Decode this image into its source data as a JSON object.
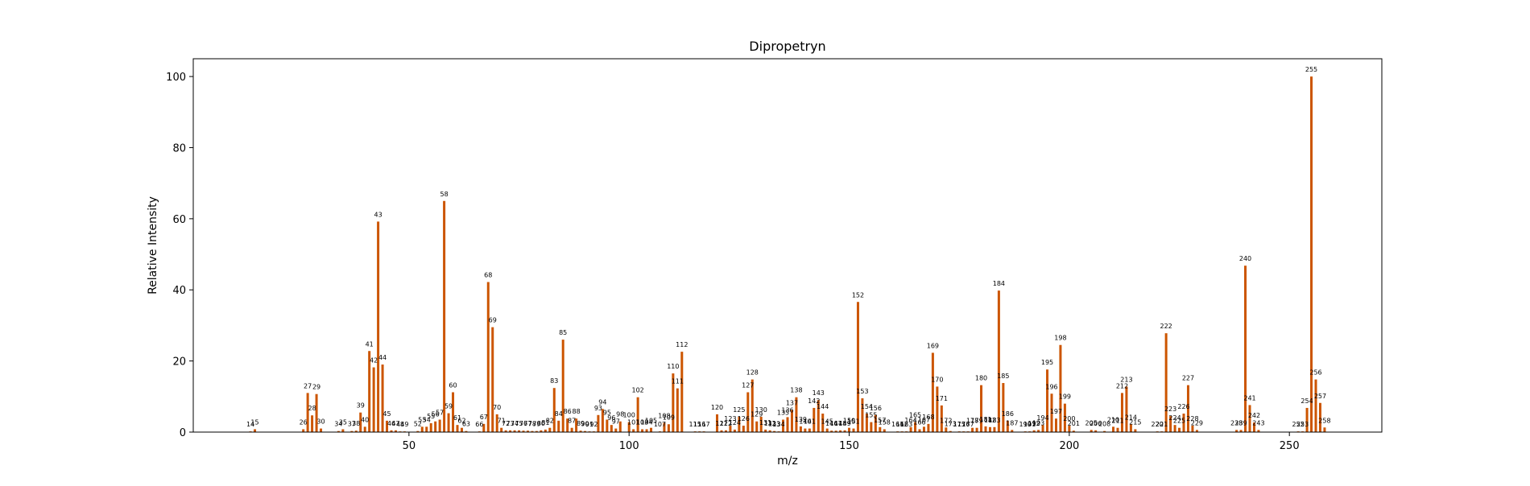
{
  "chart_data": {
    "type": "bar",
    "title": "Dipropetryn",
    "xlabel": "m/z",
    "ylabel": "Relative Intensity",
    "xlim": [
      1,
      271
    ],
    "ylim": [
      0,
      105
    ],
    "xticks": [
      50,
      100,
      150,
      200,
      250
    ],
    "yticks": [
      0,
      20,
      40,
      60,
      80,
      100
    ],
    "bar_color": "#cc5500",
    "grid": false,
    "legend": "none",
    "peaks": [
      {
        "mz": 14,
        "intensity": 0.2
      },
      {
        "mz": 15,
        "intensity": 0.8
      },
      {
        "mz": 26,
        "intensity": 0.8
      },
      {
        "mz": 27,
        "intensity": 11
      },
      {
        "mz": 28,
        "intensity": 4.7
      },
      {
        "mz": 29,
        "intensity": 10.7
      },
      {
        "mz": 30,
        "intensity": 1
      },
      {
        "mz": 34,
        "intensity": 0.3
      },
      {
        "mz": 35,
        "intensity": 0.8
      },
      {
        "mz": 37,
        "intensity": 0.3
      },
      {
        "mz": 38,
        "intensity": 0.4
      },
      {
        "mz": 39,
        "intensity": 5.5
      },
      {
        "mz": 40,
        "intensity": 1.5
      },
      {
        "mz": 41,
        "intensity": 22.8
      },
      {
        "mz": 42,
        "intensity": 18.2
      },
      {
        "mz": 43,
        "intensity": 59.2
      },
      {
        "mz": 44,
        "intensity": 19
      },
      {
        "mz": 45,
        "intensity": 3.2
      },
      {
        "mz": 46,
        "intensity": 0.5
      },
      {
        "mz": 47,
        "intensity": 0.5
      },
      {
        "mz": 48,
        "intensity": 0.2
      },
      {
        "mz": 49,
        "intensity": 0.2
      },
      {
        "mz": 52,
        "intensity": 0.3
      },
      {
        "mz": 53,
        "intensity": 1.5
      },
      {
        "mz": 54,
        "intensity": 1.5
      },
      {
        "mz": 55,
        "intensity": 2.5
      },
      {
        "mz": 56,
        "intensity": 3
      },
      {
        "mz": 57,
        "intensity": 3.5
      },
      {
        "mz": 58,
        "intensity": 65
      },
      {
        "mz": 59,
        "intensity": 5.3
      },
      {
        "mz": 60,
        "intensity": 11.2
      },
      {
        "mz": 61,
        "intensity": 2
      },
      {
        "mz": 62,
        "intensity": 1.2
      },
      {
        "mz": 63,
        "intensity": 0.3
      },
      {
        "mz": 66,
        "intensity": 0.2
      },
      {
        "mz": 67,
        "intensity": 2.3
      },
      {
        "mz": 68,
        "intensity": 42.2
      },
      {
        "mz": 69,
        "intensity": 29.5
      },
      {
        "mz": 70,
        "intensity": 5
      },
      {
        "mz": 71,
        "intensity": 1.2
      },
      {
        "mz": 72,
        "intensity": 0.5
      },
      {
        "mz": 73,
        "intensity": 0.5
      },
      {
        "mz": 74,
        "intensity": 0.5
      },
      {
        "mz": 75,
        "intensity": 0.5
      },
      {
        "mz": 76,
        "intensity": 0.4
      },
      {
        "mz": 77,
        "intensity": 0.4
      },
      {
        "mz": 78,
        "intensity": 0.3
      },
      {
        "mz": 79,
        "intensity": 0.3
      },
      {
        "mz": 80,
        "intensity": 0.5
      },
      {
        "mz": 81,
        "intensity": 0.7
      },
      {
        "mz": 82,
        "intensity": 1.2
      },
      {
        "mz": 83,
        "intensity": 12.4
      },
      {
        "mz": 84,
        "intensity": 3.2
      },
      {
        "mz": 85,
        "intensity": 26
      },
      {
        "mz": 86,
        "intensity": 3.8
      },
      {
        "mz": 87,
        "intensity": 1.2
      },
      {
        "mz": 88,
        "intensity": 3.8
      },
      {
        "mz": 89,
        "intensity": 0.4
      },
      {
        "mz": 90,
        "intensity": 0.3
      },
      {
        "mz": 91,
        "intensity": 0.2
      },
      {
        "mz": 92,
        "intensity": 0.2
      },
      {
        "mz": 93,
        "intensity": 4.8
      },
      {
        "mz": 94,
        "intensity": 6.5
      },
      {
        "mz": 95,
        "intensity": 3.5
      },
      {
        "mz": 96,
        "intensity": 2
      },
      {
        "mz": 97,
        "intensity": 1
      },
      {
        "mz": 98,
        "intensity": 3
      },
      {
        "mz": 100,
        "intensity": 2.8
      },
      {
        "mz": 101,
        "intensity": 0.8
      },
      {
        "mz": 102,
        "intensity": 9.8
      },
      {
        "mz": 103,
        "intensity": 0.8
      },
      {
        "mz": 104,
        "intensity": 0.8
      },
      {
        "mz": 105,
        "intensity": 1.2
      },
      {
        "mz": 107,
        "intensity": 0.2
      },
      {
        "mz": 108,
        "intensity": 2.6
      },
      {
        "mz": 109,
        "intensity": 2.2
      },
      {
        "mz": 110,
        "intensity": 16.5
      },
      {
        "mz": 111,
        "intensity": 12.3
      },
      {
        "mz": 112,
        "intensity": 22.6
      },
      {
        "mz": 115,
        "intensity": 0.2
      },
      {
        "mz": 116,
        "intensity": 0.2
      },
      {
        "mz": 117,
        "intensity": 0.2
      },
      {
        "mz": 120,
        "intensity": 5
      },
      {
        "mz": 121,
        "intensity": 0.5
      },
      {
        "mz": 122,
        "intensity": 0.5
      },
      {
        "mz": 123,
        "intensity": 1.8
      },
      {
        "mz": 124,
        "intensity": 0.7
      },
      {
        "mz": 125,
        "intensity": 4.3
      },
      {
        "mz": 126,
        "intensity": 1.8
      },
      {
        "mz": 127,
        "intensity": 11.2
      },
      {
        "mz": 128,
        "intensity": 14.8
      },
      {
        "mz": 129,
        "intensity": 3
      },
      {
        "mz": 130,
        "intensity": 4.3
      },
      {
        "mz": 131,
        "intensity": 0.7
      },
      {
        "mz": 132,
        "intensity": 0.5
      },
      {
        "mz": 133,
        "intensity": 0.3
      },
      {
        "mz": 134,
        "intensity": 0.2
      },
      {
        "mz": 135,
        "intensity": 3.5
      },
      {
        "mz": 136,
        "intensity": 4.2
      },
      {
        "mz": 137,
        "intensity": 6.2
      },
      {
        "mz": 138,
        "intensity": 9.8
      },
      {
        "mz": 139,
        "intensity": 1.6
      },
      {
        "mz": 140,
        "intensity": 1
      },
      {
        "mz": 141,
        "intensity": 1
      },
      {
        "mz": 142,
        "intensity": 6.8
      },
      {
        "mz": 143,
        "intensity": 9
      },
      {
        "mz": 144,
        "intensity": 5.2
      },
      {
        "mz": 145,
        "intensity": 1
      },
      {
        "mz": 146,
        "intensity": 0.4
      },
      {
        "mz": 147,
        "intensity": 0.4
      },
      {
        "mz": 148,
        "intensity": 0.5
      },
      {
        "mz": 149,
        "intensity": 0.5
      },
      {
        "mz": 150,
        "intensity": 1.2
      },
      {
        "mz": 151,
        "intensity": 1
      },
      {
        "mz": 152,
        "intensity": 36.6
      },
      {
        "mz": 153,
        "intensity": 9.5
      },
      {
        "mz": 154,
        "intensity": 5.2
      },
      {
        "mz": 155,
        "intensity": 2.8
      },
      {
        "mz": 156,
        "intensity": 4.8
      },
      {
        "mz": 157,
        "intensity": 1.4
      },
      {
        "mz": 158,
        "intensity": 0.8
      },
      {
        "mz": 161,
        "intensity": 0.2
      },
      {
        "mz": 162,
        "intensity": 0.2
      },
      {
        "mz": 163,
        "intensity": 0.2
      },
      {
        "mz": 164,
        "intensity": 1.4
      },
      {
        "mz": 165,
        "intensity": 2.8
      },
      {
        "mz": 166,
        "intensity": 0.8
      },
      {
        "mz": 167,
        "intensity": 1.5
      },
      {
        "mz": 168,
        "intensity": 2.3
      },
      {
        "mz": 169,
        "intensity": 22.3
      },
      {
        "mz": 170,
        "intensity": 12.8
      },
      {
        "mz": 171,
        "intensity": 7.5
      },
      {
        "mz": 172,
        "intensity": 1.3
      },
      {
        "mz": 173,
        "intensity": 0.3
      },
      {
        "mz": 175,
        "intensity": 0.2
      },
      {
        "mz": 176,
        "intensity": 0.2
      },
      {
        "mz": 177,
        "intensity": 0.2
      },
      {
        "mz": 178,
        "intensity": 1.2
      },
      {
        "mz": 179,
        "intensity": 1.2
      },
      {
        "mz": 180,
        "intensity": 13.2
      },
      {
        "mz": 181,
        "intensity": 1.6
      },
      {
        "mz": 182,
        "intensity": 1.4
      },
      {
        "mz": 183,
        "intensity": 1.4
      },
      {
        "mz": 184,
        "intensity": 39.8
      },
      {
        "mz": 185,
        "intensity": 13.8
      },
      {
        "mz": 186,
        "intensity": 3.2
      },
      {
        "mz": 187,
        "intensity": 0.6
      },
      {
        "mz": 190,
        "intensity": 0.2
      },
      {
        "mz": 191,
        "intensity": 0.2
      },
      {
        "mz": 192,
        "intensity": 0.5
      },
      {
        "mz": 193,
        "intensity": 0.6
      },
      {
        "mz": 194,
        "intensity": 2
      },
      {
        "mz": 195,
        "intensity": 17.6
      },
      {
        "mz": 196,
        "intensity": 10.8
      },
      {
        "mz": 197,
        "intensity": 3.8
      },
      {
        "mz": 198,
        "intensity": 24.5
      },
      {
        "mz": 199,
        "intensity": 8
      },
      {
        "mz": 200,
        "intensity": 1.8
      },
      {
        "mz": 201,
        "intensity": 0.4
      },
      {
        "mz": 205,
        "intensity": 0.6
      },
      {
        "mz": 206,
        "intensity": 0.5
      },
      {
        "mz": 208,
        "intensity": 0.3
      },
      {
        "mz": 210,
        "intensity": 1.5
      },
      {
        "mz": 211,
        "intensity": 1.2
      },
      {
        "mz": 212,
        "intensity": 11
      },
      {
        "mz": 213,
        "intensity": 12.8
      },
      {
        "mz": 214,
        "intensity": 2.2
      },
      {
        "mz": 215,
        "intensity": 0.8
      },
      {
        "mz": 220,
        "intensity": 0.2
      },
      {
        "mz": 221,
        "intensity": 0.2
      },
      {
        "mz": 222,
        "intensity": 27.8
      },
      {
        "mz": 223,
        "intensity": 4.5
      },
      {
        "mz": 224,
        "intensity": 2
      },
      {
        "mz": 225,
        "intensity": 1.2
      },
      {
        "mz": 226,
        "intensity": 5.2
      },
      {
        "mz": 227,
        "intensity": 13.2
      },
      {
        "mz": 228,
        "intensity": 1.8
      },
      {
        "mz": 229,
        "intensity": 0.6
      },
      {
        "mz": 238,
        "intensity": 0.6
      },
      {
        "mz": 239,
        "intensity": 0.6
      },
      {
        "mz": 240,
        "intensity": 46.8
      },
      {
        "mz": 241,
        "intensity": 7.6
      },
      {
        "mz": 242,
        "intensity": 2.7
      },
      {
        "mz": 243,
        "intensity": 0.6
      },
      {
        "mz": 252,
        "intensity": 0.2
      },
      {
        "mz": 253,
        "intensity": 0.2
      },
      {
        "mz": 254,
        "intensity": 6.8
      },
      {
        "mz": 255,
        "intensity": 100
      },
      {
        "mz": 256,
        "intensity": 14.8
      },
      {
        "mz": 257,
        "intensity": 8.2
      },
      {
        "mz": 258,
        "intensity": 1.3
      }
    ]
  }
}
